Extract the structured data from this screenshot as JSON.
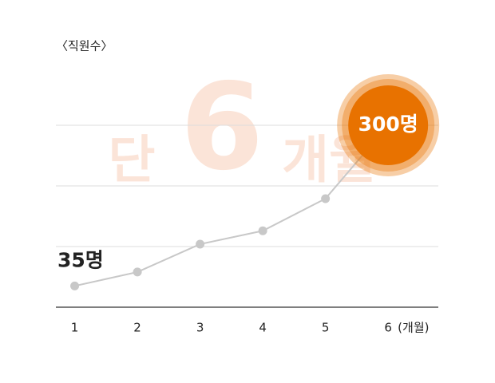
{
  "chart_data": {
    "type": "line",
    "title": "〈직원수〉",
    "watermark": [
      "단",
      "6",
      "개월"
    ],
    "x": [
      1,
      2,
      3,
      4,
      5,
      6
    ],
    "xlabel": "(개월)",
    "xlim": [
      0.7,
      6.8
    ],
    "xticks": [
      1,
      2,
      3,
      4,
      5,
      6
    ],
    "ylim": [
      0,
      400
    ],
    "yticks": [
      100,
      200,
      300
    ],
    "grid": true,
    "series": [
      {
        "color": "#c8c8c8",
        "values": [
          35,
          58,
          104,
          126,
          179,
          300
        ],
        "value_labels": [
          "35명",
          null,
          null,
          null,
          null,
          "300명"
        ]
      }
    ],
    "highlight_color": "#e87200"
  }
}
